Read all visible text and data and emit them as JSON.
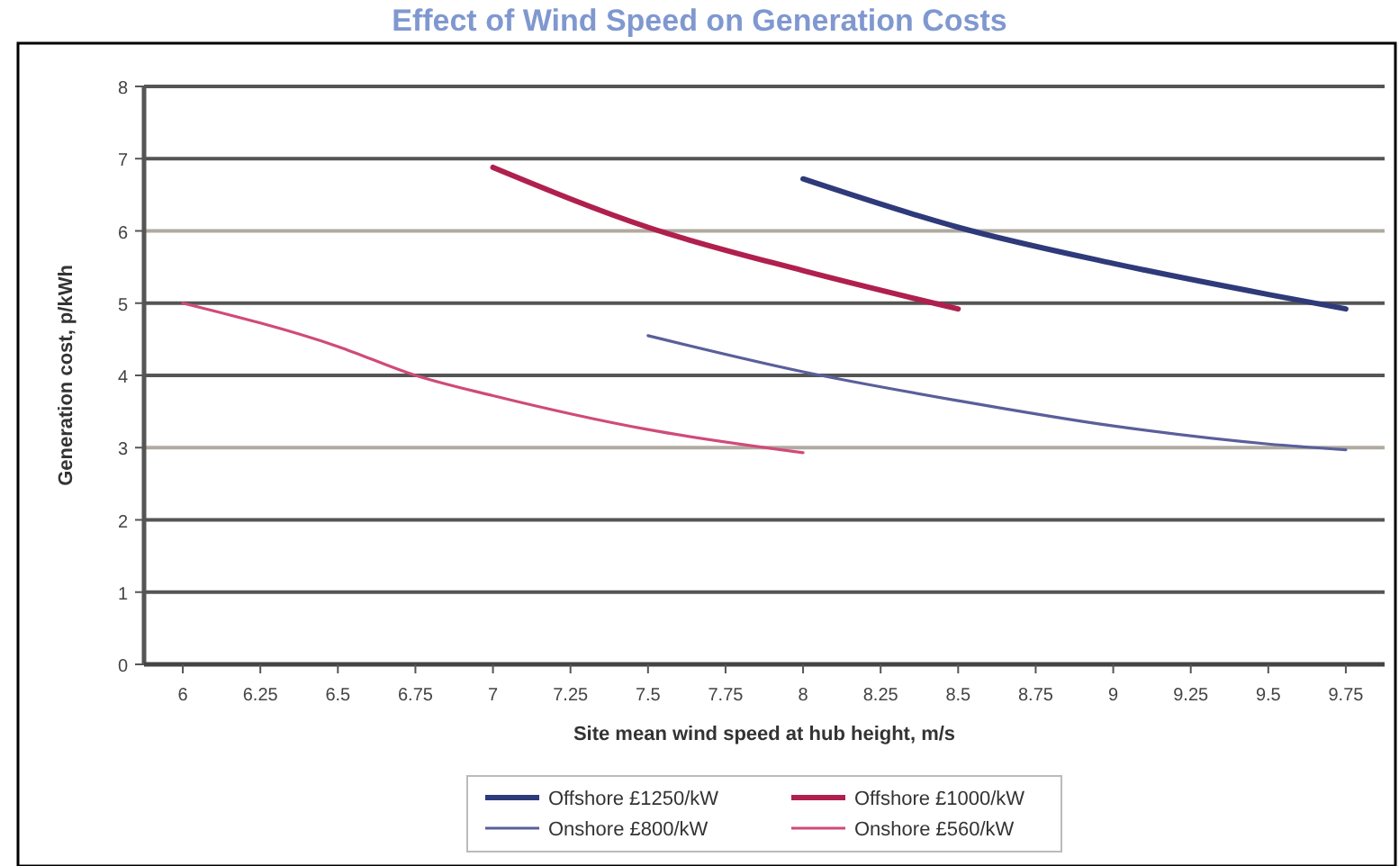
{
  "chart_data": {
    "type": "line",
    "title": "Effect of Wind Speed on Generation Costs",
    "xlabel": "Site mean wind speed at hub height, m/s",
    "ylabel": "Generation cost, p/kWh",
    "xlim": [
      5.875,
      9.875
    ],
    "xticks": [
      6,
      6.25,
      6.5,
      6.75,
      7,
      7.25,
      7.5,
      7.75,
      8,
      8.25,
      8.5,
      8.75,
      9,
      9.25,
      9.5,
      9.75
    ],
    "ylim": [
      0,
      8
    ],
    "yticks": [
      0,
      1,
      2,
      3,
      4,
      5,
      6,
      7,
      8
    ],
    "grid": "y",
    "legend": "bottom",
    "marker": "none",
    "line_style": "solid",
    "series": [
      {
        "name": "Offshore £1250/kW",
        "color": "#2e3a7a",
        "x": [
          8,
          8.5,
          9,
          9.5,
          9.75
        ],
        "values": [
          6.72,
          6.05,
          5.55,
          5.12,
          4.92
        ]
      },
      {
        "name": "Offshore £1000/kW",
        "color": "#b0204e",
        "x": [
          7,
          7.5,
          8,
          8.5
        ],
        "values": [
          6.88,
          6.05,
          5.45,
          4.92
        ]
      },
      {
        "name": "Onshore £800/kW",
        "color": "#5a5f9a",
        "x": [
          7.5,
          8,
          8.5,
          9,
          9.5,
          9.75
        ],
        "values": [
          4.55,
          4.05,
          3.65,
          3.3,
          3.05,
          2.97
        ]
      },
      {
        "name": "Onshore £560/kW",
        "color": "#d04a7a",
        "x": [
          6,
          6.5,
          6.75,
          7,
          7.5,
          8
        ],
        "values": [
          5.0,
          4.4,
          4.0,
          3.72,
          3.25,
          2.93
        ]
      }
    ]
  }
}
